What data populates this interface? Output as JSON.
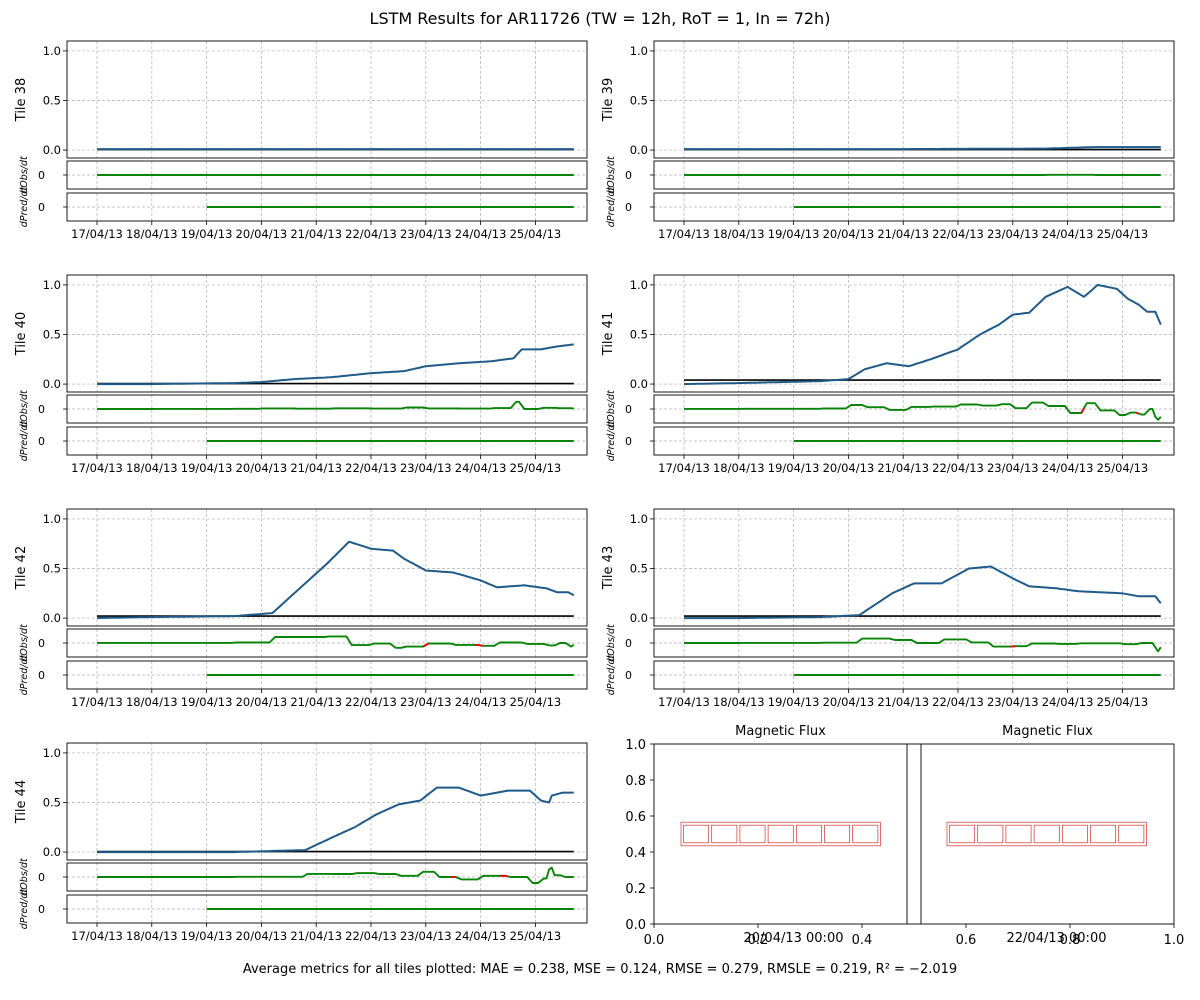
{
  "title": "LSTM Results for AR11726 (TW = 12h, RoT = 1, In = 72h)",
  "footer": "Average metrics for all tiles plotted:  MAE = 0.238,  MSE = 0.124,  RMSE = 0.279,  RMSLE = 0.219,  R² = −2.019",
  "chart_data": {
    "type": "line",
    "x_tick_labels": [
      "17/04/13",
      "18/04/13",
      "19/04/13",
      "20/04/13",
      "21/04/13",
      "22/04/13",
      "23/04/13",
      "24/04/13",
      "25/04/13"
    ],
    "x_range_days": [
      0.0,
      8.7
    ],
    "ylim": [
      -0.08,
      1.1
    ],
    "y_ticks": [
      "0.0",
      "0.5",
      "1.0"
    ],
    "deriv_ticks": [
      "0"
    ],
    "deriv_labels": {
      "obs": "dObs/dt",
      "pred": "dPred/dt"
    },
    "colors": {
      "observed": "#1f5a88",
      "predicted": "#000000",
      "derivative": "#098409",
      "negative_derivative": "#e01010"
    },
    "grid": true,
    "tiles": [
      {
        "name": "Tile 38",
        "observed": [
          [
            0,
            0.01
          ],
          [
            8.7,
            0.01
          ]
        ],
        "predicted": [
          [
            0,
            0.005
          ],
          [
            8.7,
            0.005
          ]
        ],
        "neg_segments": []
      },
      {
        "name": "Tile 39",
        "observed": [
          [
            0,
            0.01
          ],
          [
            4.0,
            0.01
          ],
          [
            6.6,
            0.015
          ],
          [
            7.5,
            0.03
          ],
          [
            8.7,
            0.03
          ]
        ],
        "predicted": [
          [
            0,
            0.005
          ],
          [
            8.7,
            0.005
          ]
        ],
        "neg_segments": []
      },
      {
        "name": "Tile 40",
        "observed": [
          [
            0,
            0.0
          ],
          [
            1.0,
            0.0
          ],
          [
            2.5,
            0.01
          ],
          [
            3.0,
            0.02
          ],
          [
            3.6,
            0.05
          ],
          [
            4.3,
            0.07
          ],
          [
            5.0,
            0.11
          ],
          [
            5.6,
            0.13
          ],
          [
            6.0,
            0.18
          ],
          [
            6.6,
            0.21
          ],
          [
            7.2,
            0.23
          ],
          [
            7.6,
            0.26
          ],
          [
            7.75,
            0.35
          ],
          [
            8.1,
            0.35
          ],
          [
            8.4,
            0.38
          ],
          [
            8.7,
            0.4
          ]
        ],
        "predicted": [
          [
            0,
            0.005
          ],
          [
            8.7,
            0.005
          ]
        ],
        "neg_segments": []
      },
      {
        "name": "Tile 41",
        "observed": [
          [
            0,
            0.0
          ],
          [
            1.0,
            0.01
          ],
          [
            2.5,
            0.03
          ],
          [
            3.0,
            0.05
          ],
          [
            3.3,
            0.15
          ],
          [
            3.7,
            0.21
          ],
          [
            4.1,
            0.18
          ],
          [
            4.5,
            0.25
          ],
          [
            5.0,
            0.35
          ],
          [
            5.4,
            0.5
          ],
          [
            5.75,
            0.6
          ],
          [
            6.0,
            0.7
          ],
          [
            6.3,
            0.72
          ],
          [
            6.6,
            0.88
          ],
          [
            7.0,
            0.98
          ],
          [
            7.3,
            0.88
          ],
          [
            7.55,
            1.0
          ],
          [
            7.9,
            0.96
          ],
          [
            8.1,
            0.86
          ],
          [
            8.3,
            0.8
          ],
          [
            8.45,
            0.73
          ],
          [
            8.6,
            0.73
          ],
          [
            8.7,
            0.6
          ]
        ],
        "predicted": [
          [
            0,
            0.04
          ],
          [
            8.7,
            0.04
          ]
        ],
        "neg_segments": [
          [
            7.2,
            7.3
          ],
          [
            8.2,
            8.32
          ]
        ]
      },
      {
        "name": "Tile 42",
        "observed": [
          [
            0,
            0.0
          ],
          [
            1.0,
            0.01
          ],
          [
            2.5,
            0.02
          ],
          [
            3.2,
            0.05
          ],
          [
            3.6,
            0.25
          ],
          [
            4.2,
            0.55
          ],
          [
            4.6,
            0.77
          ],
          [
            5.0,
            0.7
          ],
          [
            5.4,
            0.68
          ],
          [
            5.6,
            0.6
          ],
          [
            6.0,
            0.48
          ],
          [
            6.5,
            0.46
          ],
          [
            7.0,
            0.38
          ],
          [
            7.3,
            0.31
          ],
          [
            7.8,
            0.33
          ],
          [
            8.2,
            0.3
          ],
          [
            8.4,
            0.26
          ],
          [
            8.6,
            0.26
          ],
          [
            8.7,
            0.23
          ]
        ],
        "predicted": [
          [
            0,
            0.02
          ],
          [
            8.7,
            0.02
          ]
        ],
        "neg_segments": [
          [
            5.9,
            6.05
          ],
          [
            6.85,
            7.05
          ]
        ]
      },
      {
        "name": "Tile 43",
        "observed": [
          [
            0,
            0.0
          ],
          [
            1.0,
            0.0
          ],
          [
            2.5,
            0.01
          ],
          [
            3.2,
            0.03
          ],
          [
            3.8,
            0.25
          ],
          [
            4.2,
            0.35
          ],
          [
            4.7,
            0.35
          ],
          [
            5.2,
            0.5
          ],
          [
            5.6,
            0.52
          ],
          [
            6.0,
            0.4
          ],
          [
            6.3,
            0.32
          ],
          [
            6.8,
            0.3
          ],
          [
            7.2,
            0.27
          ],
          [
            7.6,
            0.26
          ],
          [
            8.0,
            0.25
          ],
          [
            8.3,
            0.22
          ],
          [
            8.6,
            0.22
          ],
          [
            8.7,
            0.15
          ]
        ],
        "predicted": [
          [
            0,
            0.02
          ],
          [
            8.7,
            0.02
          ]
        ],
        "neg_segments": [
          [
            5.9,
            6.05
          ]
        ]
      },
      {
        "name": "Tile 44",
        "observed": [
          [
            0,
            0.0
          ],
          [
            1.0,
            0.0
          ],
          [
            2.5,
            0.0
          ],
          [
            3.8,
            0.02
          ],
          [
            4.3,
            0.15
          ],
          [
            4.7,
            0.25
          ],
          [
            5.1,
            0.38
          ],
          [
            5.5,
            0.48
          ],
          [
            5.9,
            0.52
          ],
          [
            6.2,
            0.65
          ],
          [
            6.6,
            0.65
          ],
          [
            7.0,
            0.57
          ],
          [
            7.5,
            0.62
          ],
          [
            7.9,
            0.62
          ],
          [
            8.1,
            0.52
          ],
          [
            8.25,
            0.5
          ],
          [
            8.3,
            0.57
          ],
          [
            8.5,
            0.6
          ],
          [
            8.7,
            0.6
          ]
        ],
        "predicted": [
          [
            0,
            0.005
          ],
          [
            8.7,
            0.005
          ]
        ],
        "neg_segments": [
          [
            6.4,
            6.55
          ],
          [
            7.3,
            7.5
          ]
        ]
      }
    ],
    "flux_panels": {
      "titles": [
        "Magnetic Flux",
        "Magnetic Flux"
      ],
      "timestamps": [
        "20/04/13 00:00",
        "22/04/13 00:00"
      ],
      "x_ticks": [
        "0.0",
        "0.2",
        "0.4",
        "0.6",
        "0.8",
        "1.0"
      ],
      "y_ticks": [
        "0.0",
        "0.2",
        "0.4",
        "0.6",
        "0.8",
        "1.0"
      ],
      "grid_cells_per_panel": 7
    }
  }
}
